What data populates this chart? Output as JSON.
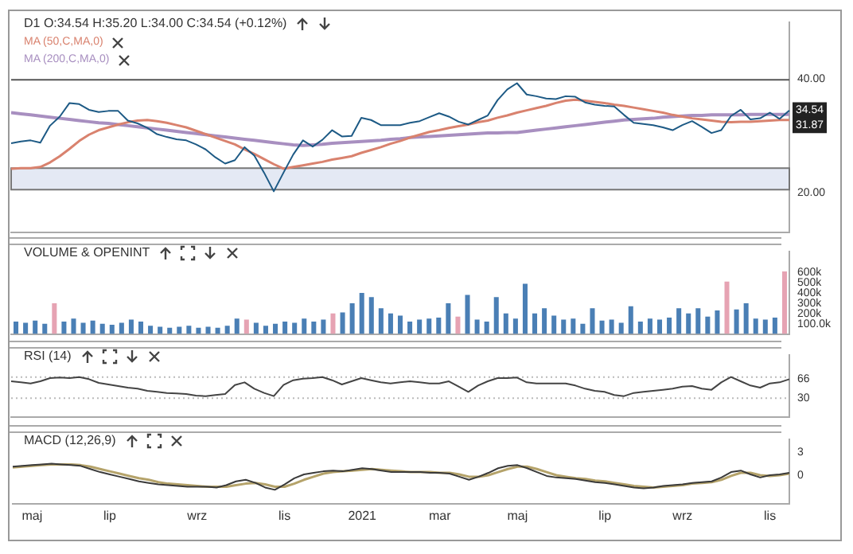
{
  "chart_data": [
    {
      "type": "line",
      "title": "D1 O:34.54 H:35.20 L:34.00 C:34.54 (+0.12%)",
      "tick_labels": "y",
      "legend": "top left",
      "marker": "none",
      "grid": false,
      "categories": [
        null,
        null,
        null,
        null,
        null,
        null,
        null,
        null,
        null,
        null,
        null,
        null,
        null,
        null,
        null,
        null,
        null,
        null,
        null,
        null,
        null,
        null,
        null,
        null,
        null,
        null,
        null,
        null,
        null,
        null,
        null,
        null,
        null,
        null,
        null,
        null,
        null,
        null,
        null,
        null,
        null,
        null,
        null,
        null,
        null,
        null,
        null,
        null,
        null,
        null,
        null,
        null,
        null,
        null,
        null,
        null,
        null,
        null,
        null,
        null,
        null,
        null,
        null,
        null,
        null,
        null,
        null,
        null,
        null,
        null,
        null,
        null,
        null,
        null,
        null,
        null,
        null,
        null,
        null,
        null,
        null
      ],
      "series": [
        {
          "color": "#1d5a85",
          "values": [
            28.7,
            29.0,
            29.2,
            28.8,
            31.8,
            33.4,
            35.8,
            35.6,
            34.6,
            34.2,
            34.4,
            34.4,
            32.7,
            32.2,
            31.4,
            30.3,
            29.8,
            29.4,
            29.2,
            28.5,
            27.6,
            26.2,
            25.1,
            25.7,
            28.0,
            26.5,
            23.5,
            20.2,
            23.5,
            26.7,
            29.2,
            28.1,
            29.3,
            31.0,
            29.9,
            30.0,
            33.2,
            32.8,
            31.9,
            31.9,
            31.9,
            32.3,
            32.6,
            33.3,
            34.0,
            33.4,
            32.5,
            32.0,
            32.8,
            33.6,
            36.3,
            38.2,
            39.3,
            37.3,
            37.0,
            36.6,
            36.5,
            37.0,
            36.9,
            35.9,
            35.5,
            35.3,
            35.2,
            33.7,
            32.3,
            32.1,
            31.9,
            31.5,
            31.0,
            31.9,
            32.6,
            31.6,
            30.5,
            31.0,
            33.5,
            34.6,
            32.9,
            33.1,
            34.1,
            33.0,
            34.5
          ]
        },
        {
          "name": "MA (50,C,MA,0)",
          "color": "#d9826e",
          "values": [
            24.2,
            24.3,
            24.3,
            24.5,
            25.3,
            26.4,
            27.7,
            29.1,
            30.2,
            31.0,
            31.5,
            32.0,
            32.4,
            32.7,
            32.8,
            32.6,
            32.3,
            31.9,
            31.5,
            30.9,
            30.3,
            29.7,
            29.1,
            28.5,
            27.6,
            26.8,
            25.9,
            25.0,
            24.2,
            24.5,
            24.8,
            25.1,
            25.4,
            25.8,
            26.1,
            26.4,
            27.0,
            27.5,
            28.0,
            28.6,
            29.1,
            29.7,
            30.2,
            30.7,
            31.0,
            31.4,
            31.7,
            32.0,
            32.4,
            32.7,
            33.2,
            33.6,
            34.1,
            34.5,
            34.9,
            35.3,
            35.8,
            36.2,
            36.4,
            36.2,
            36.0,
            35.8,
            35.5,
            35.3,
            35.0,
            34.7,
            34.4,
            34.1,
            33.7,
            33.4,
            33.1,
            32.9,
            32.7,
            32.5,
            32.4,
            32.5,
            32.5,
            32.6,
            32.7,
            32.8,
            32.8
          ]
        },
        {
          "name": "MA (200,C,MA,0)",
          "color": "#a88fc0",
          "values": [
            34.1,
            33.9,
            33.7,
            33.5,
            33.3,
            33.1,
            32.9,
            32.7,
            32.5,
            32.3,
            32.2,
            32.0,
            31.8,
            31.6,
            31.4,
            31.2,
            31.0,
            30.8,
            30.6,
            30.4,
            30.2,
            30.0,
            29.8,
            29.6,
            29.4,
            29.2,
            29.0,
            28.8,
            28.6,
            28.4,
            28.3,
            28.4,
            28.5,
            28.7,
            28.8,
            28.9,
            29.0,
            29.1,
            29.2,
            29.4,
            29.5,
            29.7,
            29.8,
            29.9,
            30.0,
            30.1,
            30.2,
            30.3,
            30.4,
            30.5,
            30.5,
            30.6,
            30.6,
            30.8,
            31.0,
            31.2,
            31.4,
            31.6,
            31.8,
            32.0,
            32.2,
            32.4,
            32.6,
            32.8,
            32.9,
            33.0,
            33.1,
            33.3,
            33.4,
            33.5,
            33.6,
            33.6,
            33.7,
            33.7,
            33.7,
            33.7,
            33.8,
            33.8,
            33.8,
            33.8,
            33.8
          ]
        }
      ],
      "ylim": [
        13,
        50
      ],
      "yticks": [
        {
          "value": 20,
          "label": "20.00"
        },
        {
          "value": 40,
          "label": "40.00"
        }
      ],
      "ref_lines": [
        {
          "axis": "y",
          "value": 39.9,
          "color": "#555555"
        }
      ],
      "bands": [
        {
          "axis": "y",
          "from": 20.5,
          "to": 24.3,
          "color": "#e4e9f4"
        }
      ],
      "annotations": [
        {
          "text": "34.54",
          "y": 34.54
        },
        {
          "text": "31.87",
          "y": 31.87
        }
      ]
    },
    {
      "type": "bar",
      "title": "VOLUME & OPENINT",
      "tick_labels": "y",
      "grid": false,
      "categories": [
        null,
        null,
        null,
        null,
        null,
        null,
        null,
        null,
        null,
        null,
        null,
        null,
        null,
        null,
        null,
        null,
        null,
        null,
        null,
        null,
        null,
        null,
        null,
        null,
        null,
        null,
        null,
        null,
        null,
        null,
        null,
        null,
        null,
        null,
        null,
        null,
        null,
        null,
        null,
        null,
        null,
        null,
        null,
        null,
        null,
        null,
        null,
        null,
        null,
        null,
        null,
        null,
        null,
        null,
        null,
        null,
        null,
        null,
        null,
        null,
        null,
        null,
        null,
        null,
        null,
        null,
        null,
        null,
        null,
        null,
        null,
        null,
        null,
        null,
        null,
        null,
        null,
        null,
        null,
        null,
        null
      ],
      "values": [
        120,
        110,
        130,
        100,
        300,
        120,
        150,
        110,
        130,
        100,
        90,
        110,
        140,
        120,
        80,
        70,
        60,
        70,
        80,
        60,
        70,
        60,
        80,
        150,
        140,
        110,
        80,
        100,
        120,
        110,
        150,
        120,
        140,
        200,
        210,
        300,
        400,
        360,
        250,
        200,
        180,
        120,
        140,
        150,
        160,
        300,
        170,
        380,
        140,
        120,
        360,
        200,
        150,
        490,
        200,
        250,
        180,
        140,
        150,
        100,
        250,
        130,
        140,
        110,
        270,
        120,
        150,
        140,
        160,
        250,
        200,
        250,
        170,
        230,
        510,
        240,
        300,
        150,
        140,
        160,
        610
      ],
      "colors": [
        "#4a7fb5",
        "#4a7fb5",
        "#4a7fb5",
        "#4a7fb5",
        "#e6a3b3",
        "#4a7fb5",
        "#4a7fb5",
        "#4a7fb5",
        "#4a7fb5",
        "#4a7fb5",
        "#4a7fb5",
        "#4a7fb5",
        "#4a7fb5",
        "#4a7fb5",
        "#4a7fb5",
        "#4a7fb5",
        "#4a7fb5",
        "#4a7fb5",
        "#4a7fb5",
        "#4a7fb5",
        "#4a7fb5",
        "#4a7fb5",
        "#4a7fb5",
        "#4a7fb5",
        "#e6a3b3",
        "#4a7fb5",
        "#4a7fb5",
        "#4a7fb5",
        "#4a7fb5",
        "#4a7fb5",
        "#4a7fb5",
        "#4a7fb5",
        "#4a7fb5",
        "#e6a3b3",
        "#4a7fb5",
        "#4a7fb5",
        "#4a7fb5",
        "#4a7fb5",
        "#4a7fb5",
        "#4a7fb5",
        "#4a7fb5",
        "#4a7fb5",
        "#4a7fb5",
        "#4a7fb5",
        "#4a7fb5",
        "#4a7fb5",
        "#e6a3b3",
        "#4a7fb5",
        "#4a7fb5",
        "#4a7fb5",
        "#4a7fb5",
        "#4a7fb5",
        "#4a7fb5",
        "#4a7fb5",
        "#4a7fb5",
        "#4a7fb5",
        "#4a7fb5",
        "#4a7fb5",
        "#4a7fb5",
        "#4a7fb5",
        "#4a7fb5",
        "#4a7fb5",
        "#4a7fb5",
        "#4a7fb5",
        "#4a7fb5",
        "#4a7fb5",
        "#4a7fb5",
        "#4a7fb5",
        "#4a7fb5",
        "#4a7fb5",
        "#4a7fb5",
        "#4a7fb5",
        "#4a7fb5",
        "#4a7fb5",
        "#e6a3b3",
        "#4a7fb5",
        "#4a7fb5",
        "#4a7fb5",
        "#4a7fb5",
        "#4a7fb5",
        "#e6a3b3"
      ],
      "ylim": [
        0,
        800
      ],
      "yticks": [
        {
          "value": 100,
          "label": "100.0k"
        },
        {
          "value": 200,
          "label": "200k"
        },
        {
          "value": 300,
          "label": "300k"
        },
        {
          "value": 400,
          "label": "400k"
        },
        {
          "value": 500,
          "label": "500k"
        },
        {
          "value": 600,
          "label": "600k"
        }
      ]
    },
    {
      "type": "line",
      "title": "RSI (14)",
      "tick_labels": "y",
      "marker": "none",
      "grid": false,
      "categories": [
        null,
        null,
        null,
        null,
        null,
        null,
        null,
        null,
        null,
        null,
        null,
        null,
        null,
        null,
        null,
        null,
        null,
        null,
        null,
        null,
        null,
        null,
        null,
        null,
        null,
        null,
        null,
        null,
        null,
        null,
        null,
        null,
        null,
        null,
        null,
        null,
        null,
        null,
        null,
        null,
        null,
        null,
        null,
        null,
        null,
        null,
        null,
        null,
        null,
        null,
        null,
        null,
        null,
        null,
        null,
        null,
        null,
        null,
        null,
        null,
        null,
        null,
        null,
        null,
        null,
        null,
        null,
        null,
        null,
        null,
        null,
        null,
        null,
        null,
        null,
        null,
        null,
        null,
        null,
        null,
        null
      ],
      "series": [
        {
          "color": "#444444",
          "values": [
            62,
            60,
            58,
            62,
            68,
            69,
            68,
            70,
            66,
            59,
            56,
            53,
            50,
            48,
            44,
            42,
            40,
            39,
            38,
            35,
            34,
            36,
            38,
            55,
            60,
            48,
            40,
            34,
            55,
            64,
            67,
            68,
            70,
            64,
            56,
            62,
            68,
            64,
            60,
            58,
            60,
            62,
            60,
            58,
            58,
            62,
            52,
            42,
            54,
            62,
            68,
            68,
            69,
            60,
            58,
            58,
            58,
            58,
            54,
            48,
            44,
            42,
            36,
            34,
            40,
            42,
            44,
            46,
            48,
            52,
            53,
            48,
            46,
            60,
            70,
            62,
            54,
            50,
            58,
            60,
            66
          ]
        }
      ],
      "ylim": [
        -5,
        111
      ],
      "yticks": [
        30,
        66
      ],
      "ref_lines": [
        {
          "axis": "y",
          "value": 70,
          "color": "#bbbbbb",
          "line_style": "dotted"
        },
        {
          "axis": "y",
          "value": 30,
          "color": "#bbbbbb",
          "line_style": "dotted"
        }
      ]
    },
    {
      "type": "line",
      "title": "MACD (12,26,9)",
      "marker": "none",
      "grid": false,
      "categories": [
        null,
        null,
        "maj",
        null,
        null,
        null,
        null,
        null,
        null,
        null,
        "lip",
        null,
        null,
        null,
        null,
        null,
        null,
        null,
        null,
        "wrz",
        null,
        null,
        null,
        null,
        null,
        null,
        null,
        null,
        "lis",
        null,
        null,
        null,
        null,
        null,
        null,
        null,
        "2021",
        null,
        null,
        null,
        null,
        null,
        null,
        null,
        "mar",
        null,
        null,
        null,
        null,
        null,
        null,
        null,
        "maj",
        null,
        null,
        null,
        null,
        null,
        null,
        null,
        null,
        "lip",
        null,
        null,
        null,
        null,
        null,
        null,
        null,
        "wrz",
        null,
        null,
        null,
        null,
        null,
        null,
        null,
        null,
        "lis",
        null,
        null
      ],
      "series": [
        {
          "color": "#3a3a3a",
          "values": [
            1.1,
            1.2,
            1.3,
            1.4,
            1.5,
            1.4,
            1.3,
            1.2,
            0.8,
            0.4,
            0.1,
            -0.2,
            -0.5,
            -0.8,
            -1.0,
            -1.2,
            -1.3,
            -1.4,
            -1.5,
            -1.5,
            -1.5,
            -1.6,
            -1.3,
            -0.8,
            -0.6,
            -1.0,
            -1.6,
            -1.9,
            -1.2,
            -0.4,
            0.1,
            0.3,
            0.5,
            0.6,
            0.5,
            0.7,
            0.9,
            0.8,
            0.6,
            0.4,
            0.4,
            0.4,
            0.4,
            0.3,
            0.3,
            0.2,
            -0.2,
            -0.6,
            -0.2,
            0.3,
            0.9,
            1.2,
            1.3,
            0.9,
            0.4,
            -0.1,
            -0.3,
            -0.4,
            -0.5,
            -0.7,
            -0.9,
            -1.0,
            -1.2,
            -1.4,
            -1.6,
            -1.7,
            -1.6,
            -1.4,
            -1.3,
            -1.2,
            -1.0,
            -0.9,
            -0.8,
            -0.3,
            0.4,
            0.6,
            0.1,
            -0.3,
            0.0,
            0.1,
            0.3
          ]
        },
        {
          "color": "#b5a36a",
          "values": [
            1.0,
            1.1,
            1.2,
            1.3,
            1.4,
            1.4,
            1.4,
            1.3,
            1.1,
            0.8,
            0.5,
            0.2,
            -0.1,
            -0.4,
            -0.6,
            -0.9,
            -1.1,
            -1.2,
            -1.3,
            -1.4,
            -1.5,
            -1.5,
            -1.5,
            -1.3,
            -1.1,
            -1.0,
            -1.2,
            -1.5,
            -1.5,
            -1.1,
            -0.6,
            -0.2,
            0.2,
            0.4,
            0.5,
            0.6,
            0.7,
            0.8,
            0.7,
            0.6,
            0.5,
            0.4,
            0.4,
            0.4,
            0.3,
            0.3,
            0.1,
            -0.2,
            -0.2,
            0.0,
            0.4,
            0.8,
            1.1,
            1.1,
            0.8,
            0.4,
            0.0,
            -0.2,
            -0.4,
            -0.5,
            -0.7,
            -0.8,
            -1.0,
            -1.2,
            -1.4,
            -1.5,
            -1.6,
            -1.5,
            -1.4,
            -1.3,
            -1.1,
            -1.0,
            -0.9,
            -0.6,
            -0.1,
            0.3,
            0.3,
            0.0,
            -0.1,
            0.0,
            0.2
          ]
        }
      ],
      "ylim": [
        -3.7,
        4.6
      ],
      "yticks": [
        0,
        3
      ]
    }
  ]
}
